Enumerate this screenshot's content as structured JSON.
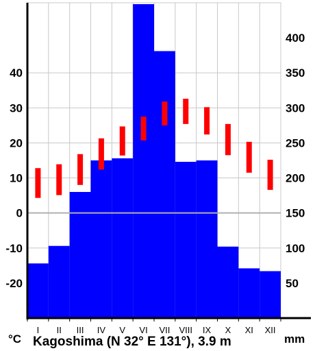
{
  "chart_data": {
    "type": "climate-diagram",
    "title": "Kagoshima (N 32° E 131°), 3.9 m",
    "left_unit": "°C",
    "right_unit": "mm",
    "months": [
      "I",
      "II",
      "III",
      "IV",
      "V",
      "VI",
      "VII",
      "VIII",
      "IX",
      "X",
      "XI",
      "XII"
    ],
    "precipitation": {
      "unit": "mm",
      "values": [
        78,
        103,
        180,
        225,
        228,
        448,
        381,
        223,
        225,
        102,
        71,
        67
      ]
    },
    "temperature": {
      "unit": "°C",
      "min": [
        4.3,
        5.1,
        8.0,
        12.4,
        16.4,
        20.7,
        25.0,
        25.4,
        22.4,
        16.5,
        11.5,
        6.6
      ],
      "max": [
        12.8,
        13.9,
        16.8,
        21.3,
        24.7,
        27.5,
        31.8,
        32.6,
        30.2,
        25.4,
        20.3,
        15.2
      ]
    },
    "left_axis": {
      "ticks": [
        40,
        30,
        20,
        10,
        0,
        -10,
        -20
      ],
      "range": [
        -30,
        60
      ]
    },
    "right_axis": {
      "ticks": [
        400,
        350,
        300,
        250,
        200,
        150,
        100,
        50
      ],
      "range": [
        0,
        450
      ]
    },
    "grid": true,
    "colors": {
      "bars": "#0000ff",
      "temperature": "#ff0000",
      "zero_line": "#b0b0b0",
      "grid": "#c8c8c8"
    }
  }
}
